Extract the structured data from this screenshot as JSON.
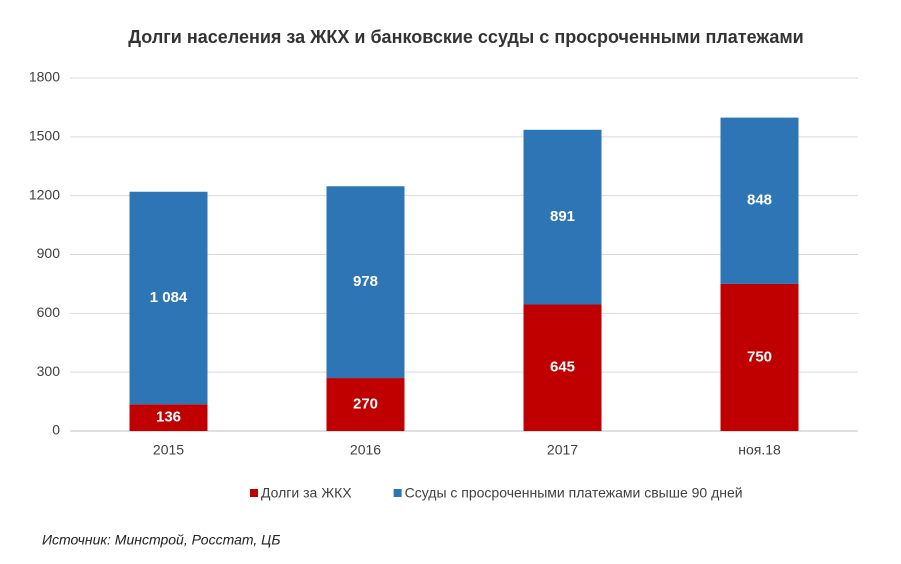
{
  "chart_data": {
    "type": "stacked_bar",
    "title": "Долги населения за ЖКХ и банковские ссуды с просроченными платежами",
    "categories": [
      "2015",
      "2016",
      "2017",
      "ноя.18"
    ],
    "series": [
      {
        "name": "Долги за ЖКХ",
        "color": "#c00000",
        "values": [
          136,
          270,
          645,
          750
        ]
      },
      {
        "name": "Ссуды с просроченными платежами свыше 90 дней",
        "color": "#2e75b6",
        "values": [
          1084,
          978,
          891,
          848
        ],
        "value_labels": [
          "1 084",
          "978",
          "891",
          "848"
        ]
      }
    ],
    "ylim": [
      0,
      1800
    ],
    "yticks": [
      0,
      300,
      600,
      900,
      1200,
      1500,
      1800
    ],
    "grid": true,
    "legend": "bottom",
    "source": "Источник: Минстрой, Росстат, ЦБ"
  }
}
